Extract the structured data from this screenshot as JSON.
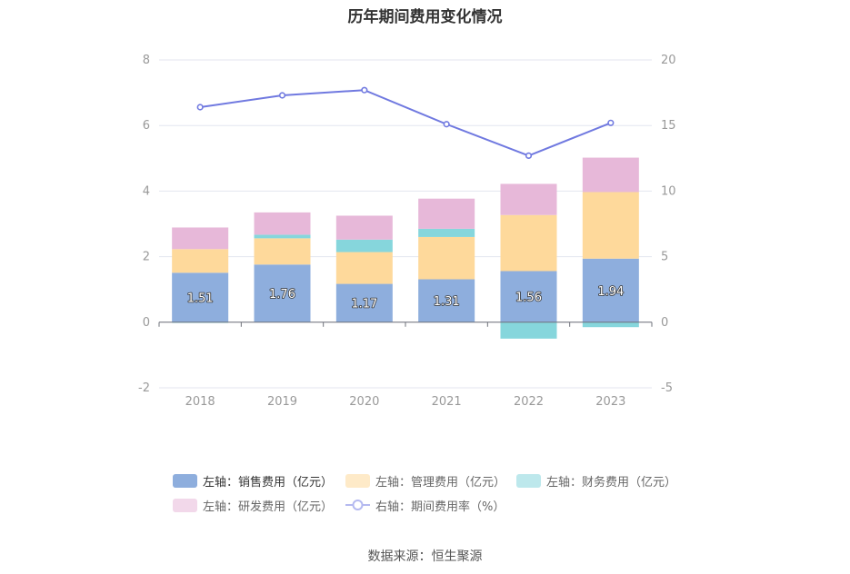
{
  "chart_data": {
    "type": "bar",
    "title": "历年期间费用变化情况",
    "categories": [
      "2018",
      "2019",
      "2020",
      "2021",
      "2022",
      "2023"
    ],
    "left_axis": {
      "ylim": [
        -2,
        8
      ],
      "ticks": [
        "-2",
        "0",
        "2",
        "4",
        "6",
        "8"
      ]
    },
    "right_axis": {
      "ylim": [
        -5,
        20
      ],
      "ticks": [
        "-5",
        "0",
        "5",
        "10",
        "15",
        "20"
      ]
    },
    "stacked": true,
    "series": [
      {
        "name": "左轴：销售费用（亿元）",
        "axis": "left",
        "color": "#8eaedd",
        "values": [
          1.51,
          1.76,
          1.17,
          1.31,
          1.56,
          1.94
        ],
        "labels": [
          "1.51",
          "1.76",
          "1.17",
          "1.31",
          "1.56",
          "1.94"
        ]
      },
      {
        "name": "左轴：管理费用（亿元）",
        "axis": "left",
        "color": "#fed99b",
        "values": [
          0.72,
          0.8,
          0.97,
          1.29,
          1.71,
          2.03
        ]
      },
      {
        "name": "左轴：财务费用（亿元）",
        "axis": "left",
        "color": "#86d6dc",
        "values": [
          -0.02,
          0.11,
          0.38,
          0.25,
          -0.5,
          -0.15
        ]
      },
      {
        "name": "左轴：研发费用（亿元）",
        "axis": "left",
        "color": "#e7b8d9",
        "values": [
          0.66,
          0.68,
          0.73,
          0.92,
          0.95,
          1.05
        ]
      },
      {
        "name": "右轴：期间费用率（%）",
        "axis": "right",
        "type": "line",
        "color": "#7079e0",
        "values": [
          16.4,
          17.3,
          17.7,
          15.1,
          12.7,
          15.2
        ]
      }
    ],
    "grid": true,
    "legend_position": "bottom"
  },
  "source": "数据来源：恒生聚源"
}
